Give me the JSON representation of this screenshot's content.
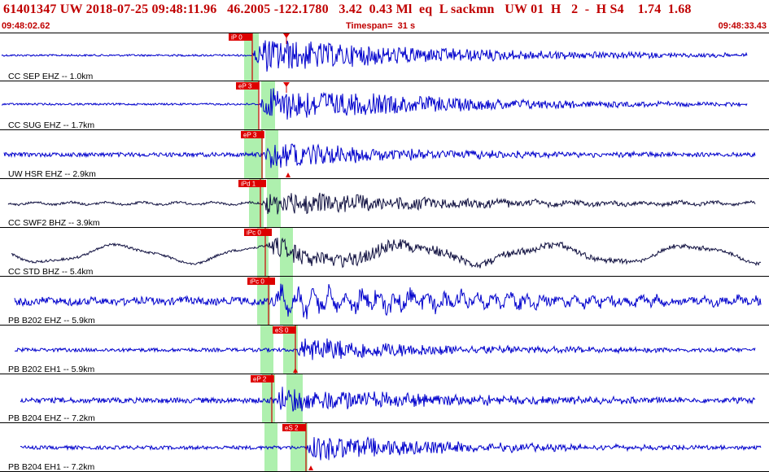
{
  "header": {
    "title": "61401347 UW 2018-07-25 09:48:11.96   46.2005 -122.1780   3.42  0.43 Ml  eq  L sackmn   UW 01  H   2  -  H S4    1.74  1.68",
    "start_time": "09:48:02.62",
    "timespan": "Timespan=  31 s",
    "end_time": "09:48:33.43"
  },
  "colors": {
    "pick_flag": "#dd0000",
    "pick_line": "#cc0000",
    "window": "#aef0ae",
    "trace_blue": "#0000cc",
    "trace_dark": "#101040",
    "label": "#000000",
    "divider": "#000000"
  },
  "channels": [
    {
      "label": "CC SEP EHZ -- 1.0km",
      "trace_color": "blue",
      "picks": [
        {
          "label": "iP 0"
        },
        {
          "label": "",
          "marker": "triangle"
        }
      ]
    },
    {
      "label": "CC SUG EHZ -- 1.7km",
      "trace_color": "blue",
      "picks": [
        {
          "label": "eP 3"
        },
        {
          "label": "",
          "marker": "triangle"
        }
      ]
    },
    {
      "label": "UW HSR EHZ -- 2.9km",
      "trace_color": "blue",
      "picks": [
        {
          "label": "eP 3"
        },
        {
          "label": "",
          "marker": "triangle"
        }
      ]
    },
    {
      "label": "CC SWF2 BHZ -- 3.9km",
      "trace_color": "dark",
      "picks": [
        {
          "label": "iPd 1"
        }
      ]
    },
    {
      "label": "CC STD BHZ -- 5.4km",
      "trace_color": "dark",
      "picks": [
        {
          "label": "iPc 0"
        }
      ]
    },
    {
      "label": "PB B202 EHZ -- 5.9km",
      "trace_color": "blue",
      "picks": [
        {
          "label": "iPc 0"
        }
      ]
    },
    {
      "label": "PB B202 EH1 -- 5.9km",
      "trace_color": "blue",
      "picks": [
        {
          "label": "eS 0"
        },
        {
          "label": "",
          "marker": "triangle"
        }
      ]
    },
    {
      "label": "PB B204 EHZ -- 7.2km",
      "trace_color": "blue",
      "picks": [
        {
          "label": "eP 2"
        }
      ]
    },
    {
      "label": "PB B204 EH1 -- 7.2km",
      "trace_color": "blue",
      "picks": [
        {
          "label": "eS 2"
        },
        {
          "label": "",
          "marker": "triangle"
        }
      ]
    }
  ]
}
